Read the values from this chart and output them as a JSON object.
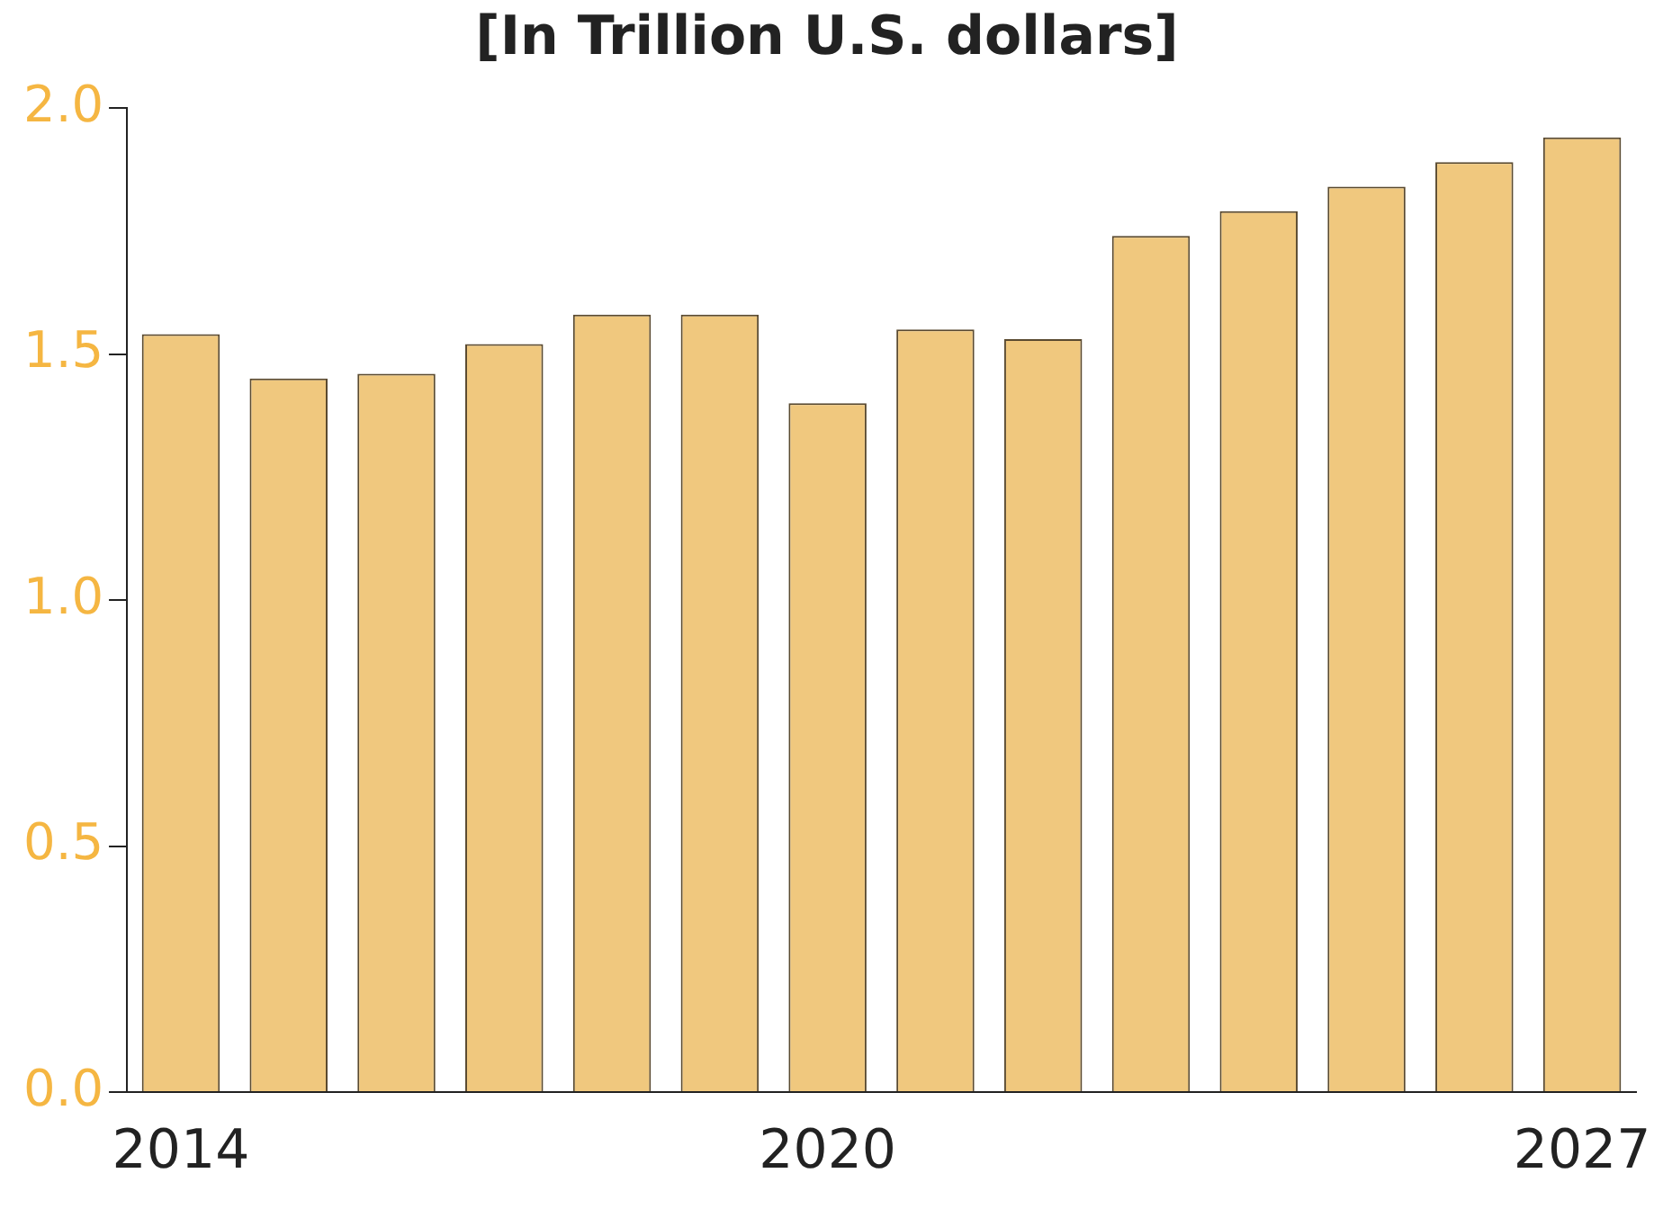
{
  "chart_data": {
    "type": "bar",
    "title": "[In Trillion U.S. dollars]",
    "categories": [
      "2014",
      null,
      null,
      null,
      null,
      null,
      "2020",
      null,
      null,
      null,
      null,
      null,
      null,
      "2027"
    ],
    "values": [
      1.54,
      1.45,
      1.46,
      1.52,
      1.58,
      1.58,
      1.4,
      1.55,
      1.53,
      1.74,
      1.79,
      1.84,
      1.89,
      1.94
    ],
    "color": "#f0c87e",
    "ylim": [
      0,
      2.0
    ],
    "yticks": [
      {
        "value": 0,
        "label": "0.0"
      },
      {
        "value": 0.5,
        "label": "0.5"
      },
      {
        "value": 1,
        "label": "1.0"
      },
      {
        "value": 1.5,
        "label": "1.5"
      },
      {
        "value": 2,
        "label": "2.0"
      }
    ],
    "grid": false,
    "legend": false
  }
}
